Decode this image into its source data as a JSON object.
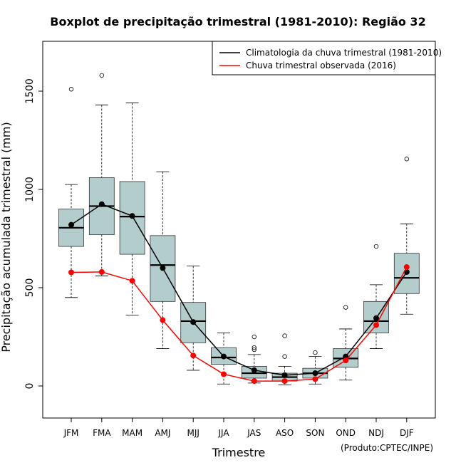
{
  "chart_data": {
    "type": "box",
    "title": "Boxplot de precipitação trimestral (1981-2010): Região 32",
    "xlabel": "Trimestre",
    "ylabel": "Precipitação acumulada trimestral (mm)",
    "credit": "(Produto:CPTEC/INPE)",
    "ylim": [
      -160,
      1750
    ],
    "yticks": [
      0,
      500,
      1000,
      1500
    ],
    "ytick_labels": [
      "0",
      "500",
      "1000",
      "1500"
    ],
    "categories": [
      "JFM",
      "FMA",
      "MAM",
      "AMJ",
      "MJJ",
      "JJA",
      "JAS",
      "ASO",
      "SON",
      "OND",
      "NDJ",
      "DJF"
    ],
    "boxes": [
      {
        "min": 450,
        "q1": 710,
        "median": 805,
        "q3": 900,
        "max": 1025,
        "outliers": [
          1510
        ]
      },
      {
        "min": 560,
        "q1": 770,
        "median": 915,
        "q3": 1060,
        "max": 1430,
        "outliers": [
          1580
        ]
      },
      {
        "min": 360,
        "q1": 670,
        "median": 862,
        "q3": 1040,
        "max": 1440,
        "outliers": []
      },
      {
        "min": 190,
        "q1": 430,
        "median": 615,
        "q3": 765,
        "max": 1090,
        "outliers": []
      },
      {
        "min": 80,
        "q1": 220,
        "median": 330,
        "q3": 425,
        "max": 610,
        "outliers": []
      },
      {
        "min": 10,
        "q1": 110,
        "median": 145,
        "q3": 195,
        "max": 270,
        "outliers": []
      },
      {
        "min": 15,
        "q1": 40,
        "median": 65,
        "q3": 100,
        "max": 160,
        "outliers": [
          185,
          195,
          250
        ]
      },
      {
        "min": 5,
        "q1": 25,
        "median": 45,
        "q3": 65,
        "max": 100,
        "outliers": [
          150,
          255
        ]
      },
      {
        "min": 10,
        "q1": 40,
        "median": 65,
        "q3": 90,
        "max": 150,
        "outliers": [
          170
        ]
      },
      {
        "min": 30,
        "q1": 95,
        "median": 140,
        "q3": 190,
        "max": 290,
        "outliers": [
          400
        ]
      },
      {
        "min": 190,
        "q1": 270,
        "median": 330,
        "q3": 430,
        "max": 515,
        "outliers": [
          710
        ]
      },
      {
        "min": 365,
        "q1": 470,
        "median": 550,
        "q3": 675,
        "max": 825,
        "outliers": [
          1155
        ]
      }
    ],
    "series": [
      {
        "name": "Climatologia da chuva trimestral (1981-2010)",
        "color": "#000000",
        "values": [
          820,
          925,
          865,
          600,
          325,
          150,
          80,
          55,
          65,
          150,
          345,
          580
        ]
      },
      {
        "name": "Chuva trimestral observada (2016)",
        "color": "#ff0000",
        "values": [
          578,
          580,
          535,
          335,
          155,
          60,
          25,
          25,
          35,
          130,
          310,
          605
        ]
      }
    ],
    "box_fill": "#b3cccc",
    "legend_position": "top-right"
  }
}
